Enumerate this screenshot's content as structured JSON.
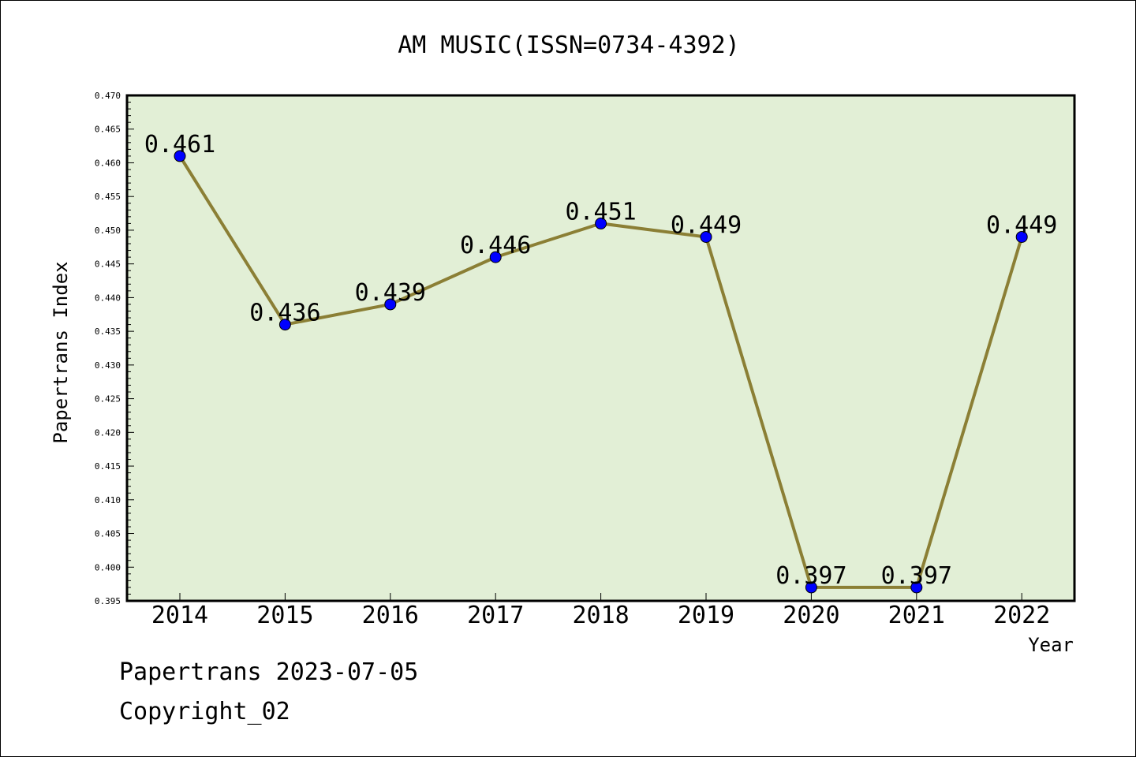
{
  "chart_data": {
    "type": "line",
    "title": "AM MUSIC(ISSN=0734-4392)",
    "xlabel": "Year",
    "ylabel": "Papertrans Index",
    "categories": [
      "2014",
      "2015",
      "2016",
      "2017",
      "2018",
      "2019",
      "2020",
      "2021",
      "2022"
    ],
    "values": [
      0.461,
      0.436,
      0.439,
      0.446,
      0.451,
      0.449,
      0.397,
      0.397,
      0.449
    ],
    "data_labels": [
      "0.461",
      "0.436",
      "0.439",
      "0.446",
      "0.451",
      "0.449",
      "0.397",
      "0.397",
      "0.449"
    ],
    "ylim": [
      0.395,
      0.47
    ],
    "yticks": [
      "0.395",
      "0.400",
      "0.405",
      "0.410",
      "0.415",
      "0.420",
      "0.425",
      "0.430",
      "0.435",
      "0.440",
      "0.445",
      "0.450",
      "0.455",
      "0.460",
      "0.465",
      "0.470"
    ],
    "grid": false,
    "colors": {
      "plot_background": "#e2efd6",
      "line": "#8b7f35",
      "marker": "#0000ff"
    }
  },
  "footer": {
    "line1": "Papertrans 2023-07-05",
    "line2": "Copyright_02"
  }
}
